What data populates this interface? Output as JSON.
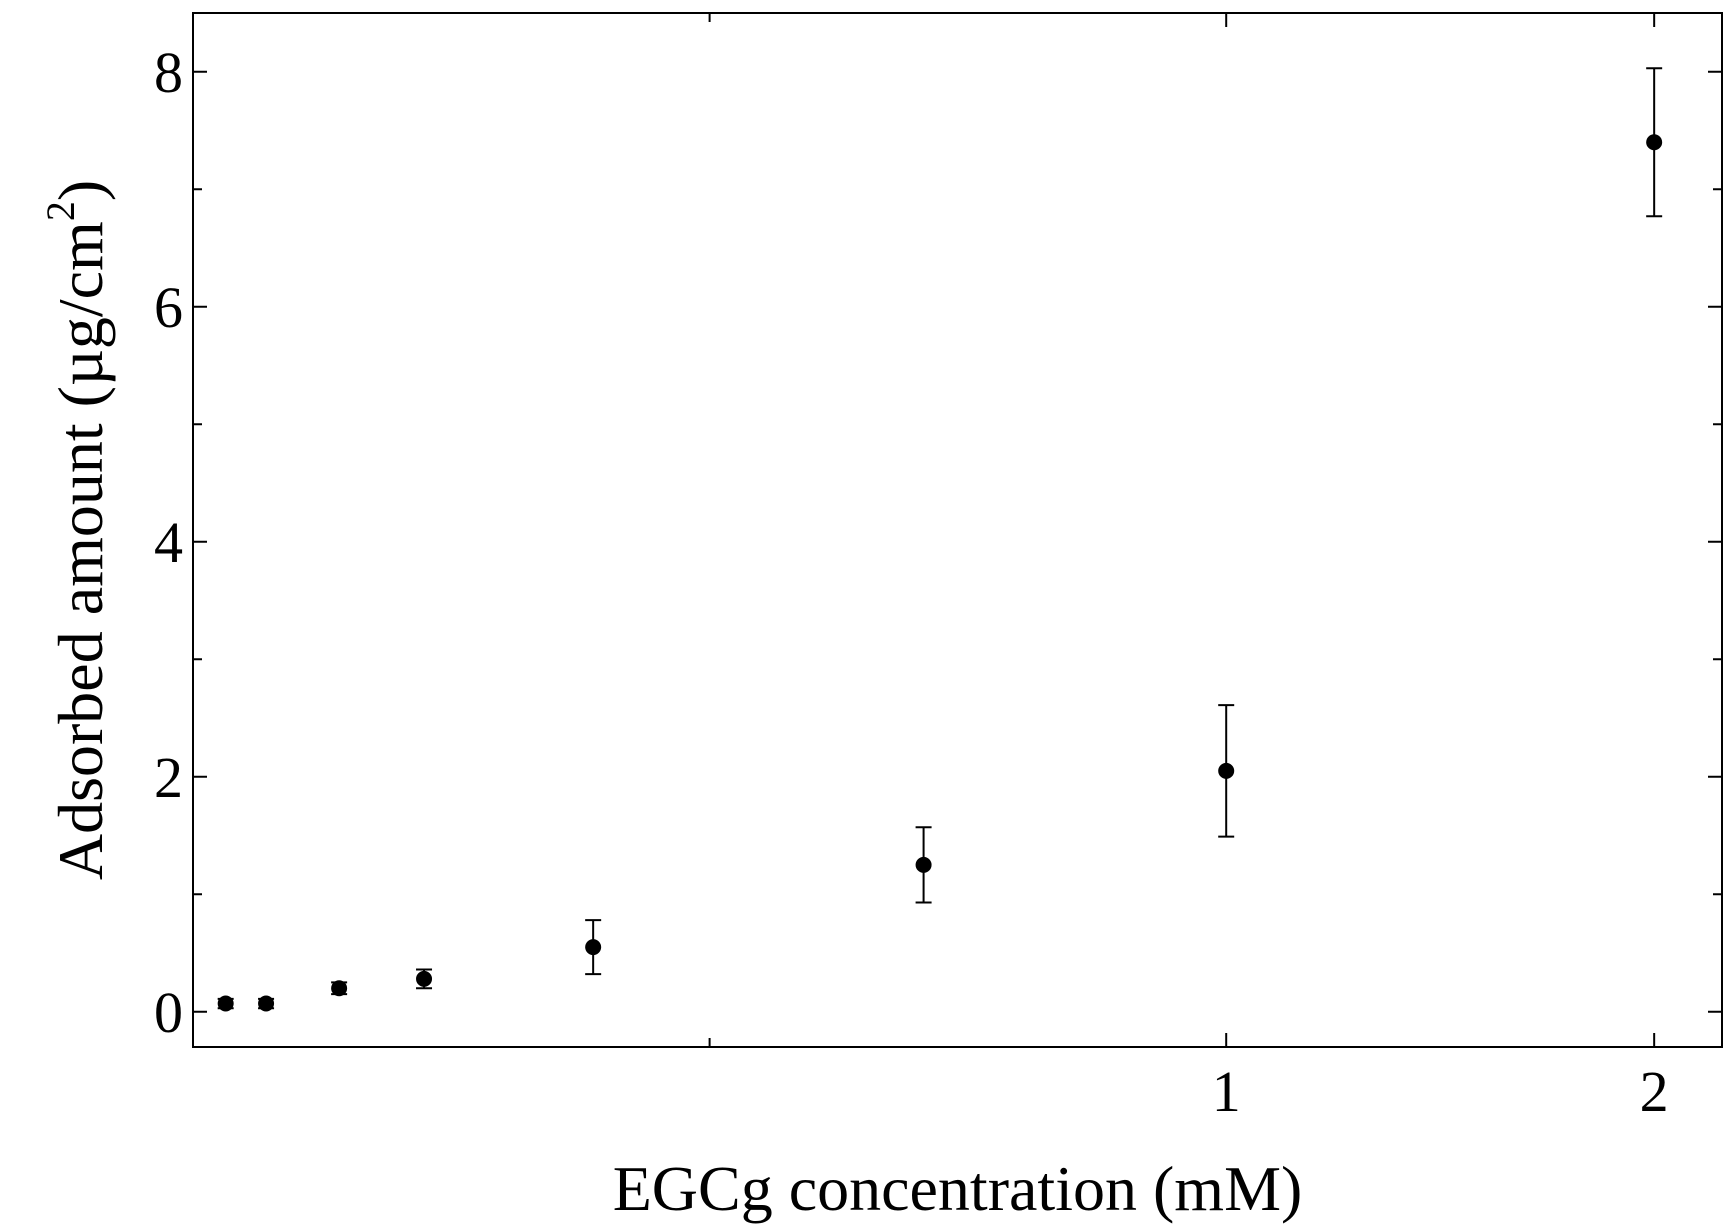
{
  "chart_data": {
    "type": "scatter",
    "xlabel": "EGCg concentration (mM)",
    "ylabel_main": "Adsorbed amount (µg/cm",
    "ylabel_sup": "2",
    "ylabel_close": ")",
    "x_scale": "sqrt",
    "xlim": [
      0,
      2.19
    ],
    "ylim": [
      -0.3,
      8.5
    ],
    "x_major_ticks": [
      1,
      2
    ],
    "x_major_tick_labels": [
      "1",
      "2"
    ],
    "x_minor_ticks": [
      0.25,
      2.25
    ],
    "y_major_ticks": [
      0,
      2,
      4,
      6,
      8
    ],
    "y_major_tick_labels": [
      "0",
      "2",
      "4",
      "6",
      "8"
    ],
    "y_minor_ticks": [
      1,
      3,
      5,
      7
    ],
    "grid": false,
    "legend": "none",
    "marker_color": "#000000",
    "points": [
      {
        "x": 0.001,
        "y": 0.07,
        "err": 0.04
      },
      {
        "x": 0.005,
        "y": 0.07,
        "err": 0.04
      },
      {
        "x": 0.02,
        "y": 0.2,
        "err": 0.05
      },
      {
        "x": 0.05,
        "y": 0.28,
        "err": 0.08
      },
      {
        "x": 0.15,
        "y": 0.55,
        "err": 0.23
      },
      {
        "x": 0.5,
        "y": 1.25,
        "err": 0.32
      },
      {
        "x": 1.0,
        "y": 2.05,
        "err": 0.56
      },
      {
        "x": 2.0,
        "y": 7.4,
        "err": 0.63
      }
    ]
  }
}
